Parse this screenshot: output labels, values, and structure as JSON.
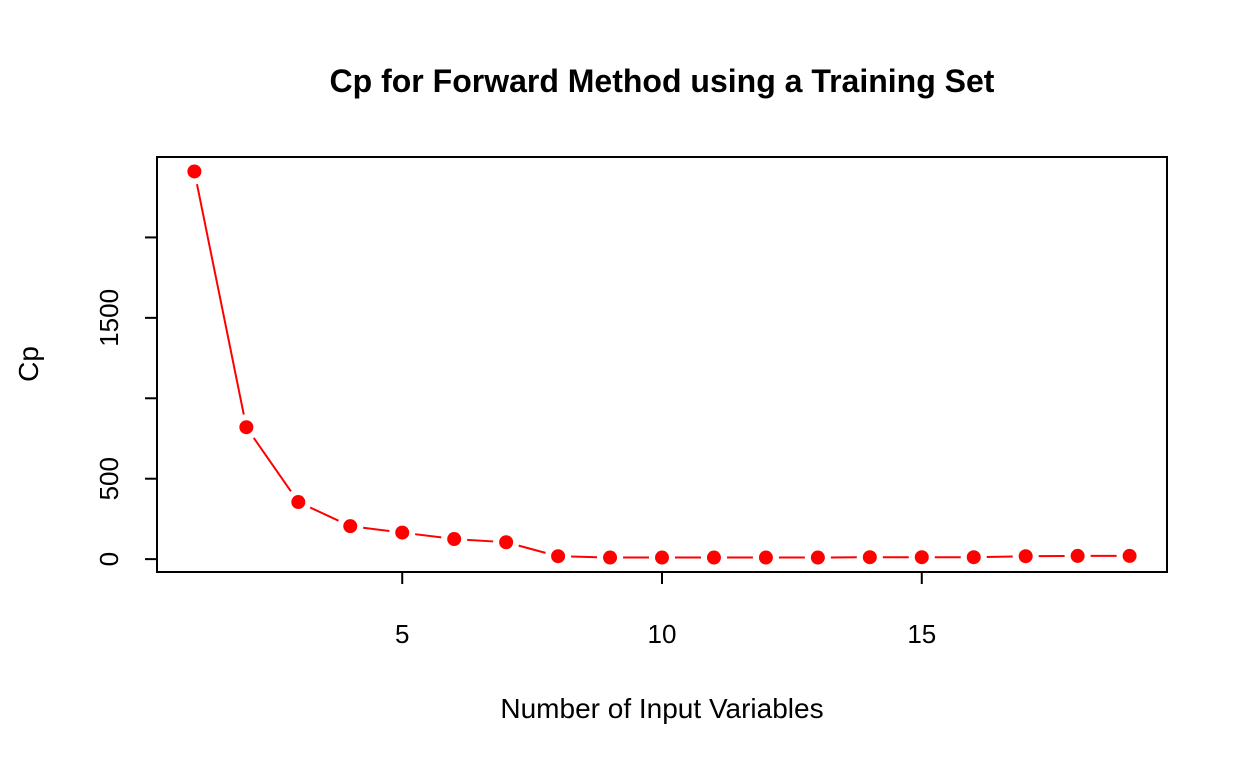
{
  "chart_data": {
    "type": "line",
    "title": "Cp for Forward Method using a Training Set",
    "xlabel": "Number of Input Variables",
    "ylabel": "Cp",
    "x": [
      1,
      2,
      3,
      4,
      5,
      6,
      7,
      8,
      9,
      10,
      11,
      12,
      13,
      14,
      15,
      16,
      17,
      18,
      19
    ],
    "series": [
      {
        "values": [
          2410,
          820,
          355,
          205,
          165,
          125,
          105,
          18,
          10,
          10,
          10,
          10,
          10,
          12,
          12,
          12,
          18,
          20,
          20
        ],
        "color": "#ff0000"
      }
    ],
    "xlim": [
      0.28,
      19.72
    ],
    "ylim": [
      -80,
      2500
    ],
    "xticks": [
      5,
      10,
      15
    ],
    "yticks": [
      0,
      500,
      1500
    ],
    "yticks_unlabeled": [
      1000,
      2000
    ],
    "grid": false,
    "legend": "none",
    "line_style": "solid",
    "marker": "filled-circle"
  }
}
